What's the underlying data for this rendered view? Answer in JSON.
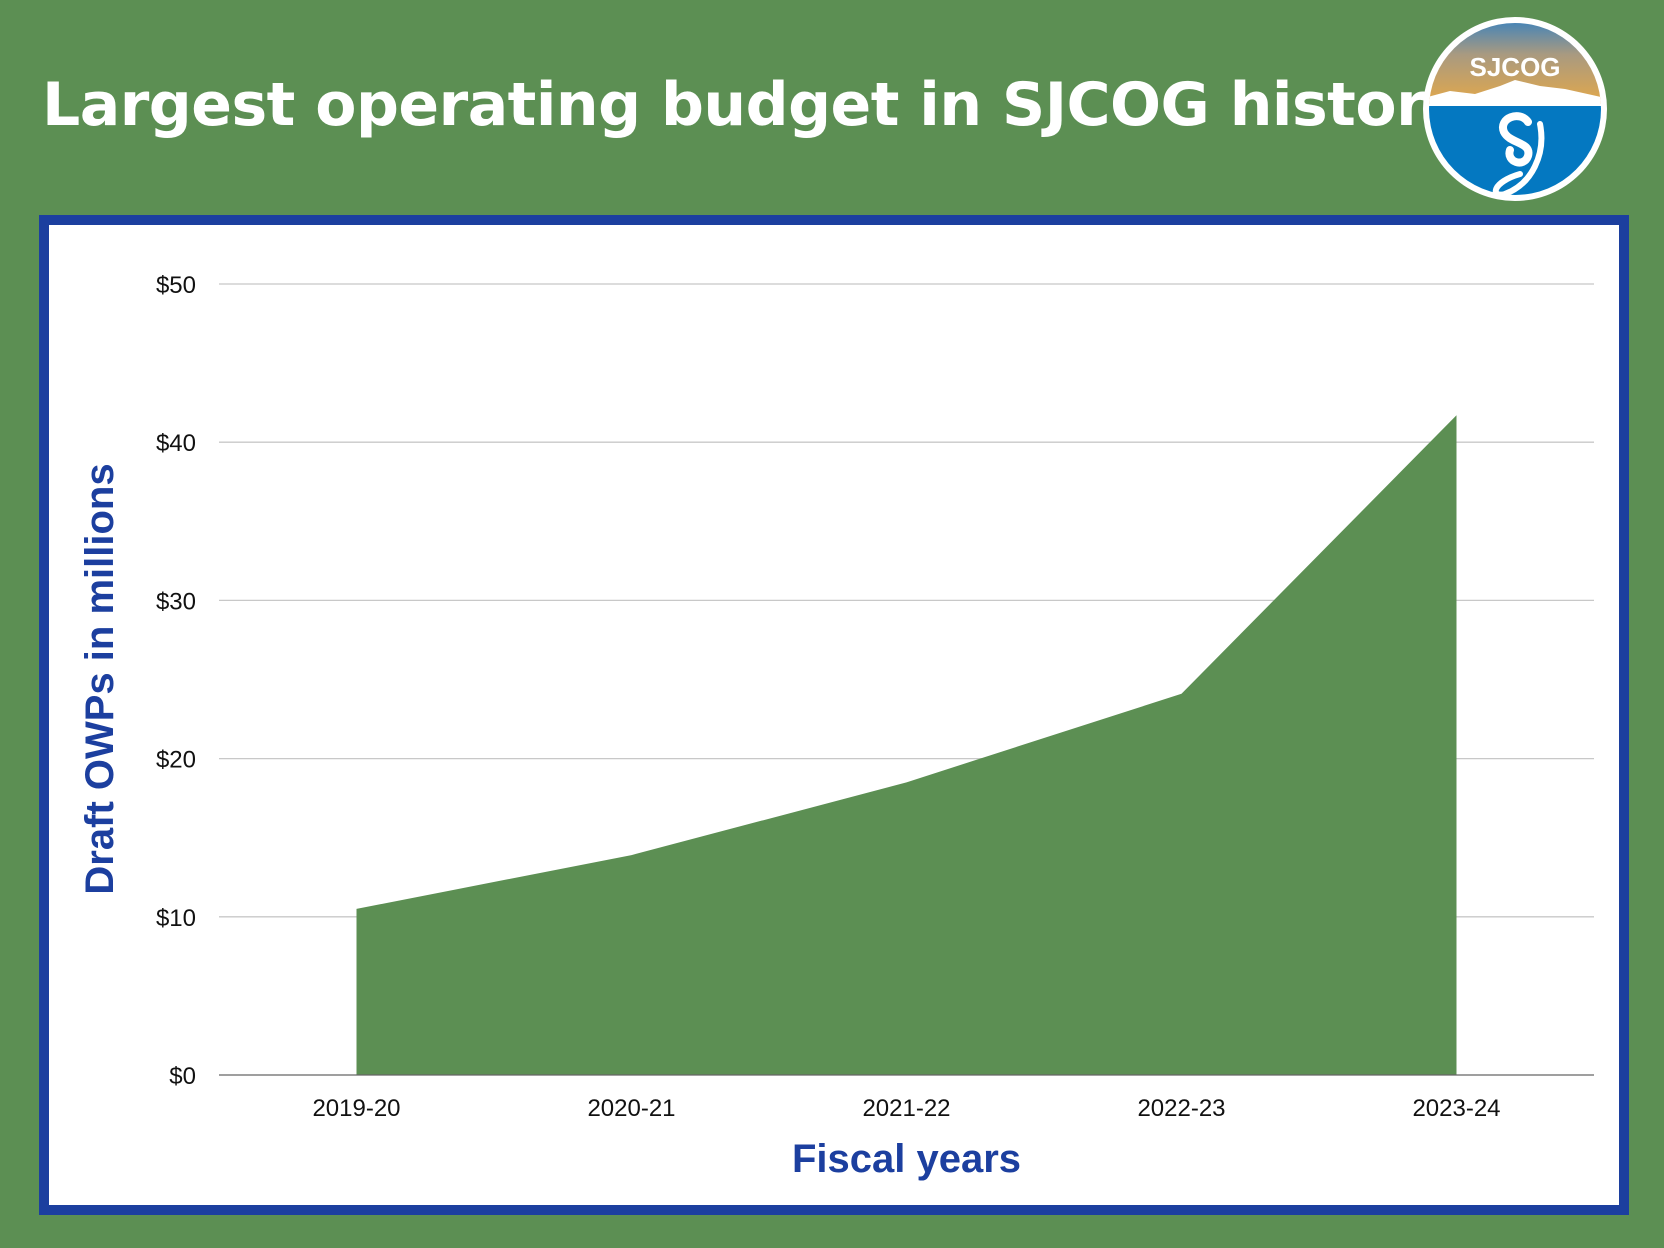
{
  "title": "Largest operating budget in SJCOG history",
  "logo": {
    "text": "SJCOG",
    "monogram": "SJ"
  },
  "colors": {
    "background": "#5c8f53",
    "area_fill": "#5c8f53",
    "frame": "#1c3f9f",
    "axis_label": "#1c3f9f",
    "grid": "#c8c8c8"
  },
  "chart_data": {
    "type": "area",
    "categories": [
      "2019-20",
      "2020-21",
      "2021-22",
      "2022-23",
      "2023-24"
    ],
    "values": [
      10.5,
      13.9,
      18.5,
      24.1,
      41.7
    ],
    "xlabel": "Fiscal years",
    "ylabel": "Draft OWPs in millions",
    "ylim": [
      0,
      50
    ],
    "yticks": [
      0,
      10,
      20,
      30,
      40,
      50
    ],
    "ytick_labels": [
      "$0",
      "$10",
      "$20",
      "$30",
      "$40",
      "$50"
    ],
    "grid": true,
    "legend": "none"
  }
}
